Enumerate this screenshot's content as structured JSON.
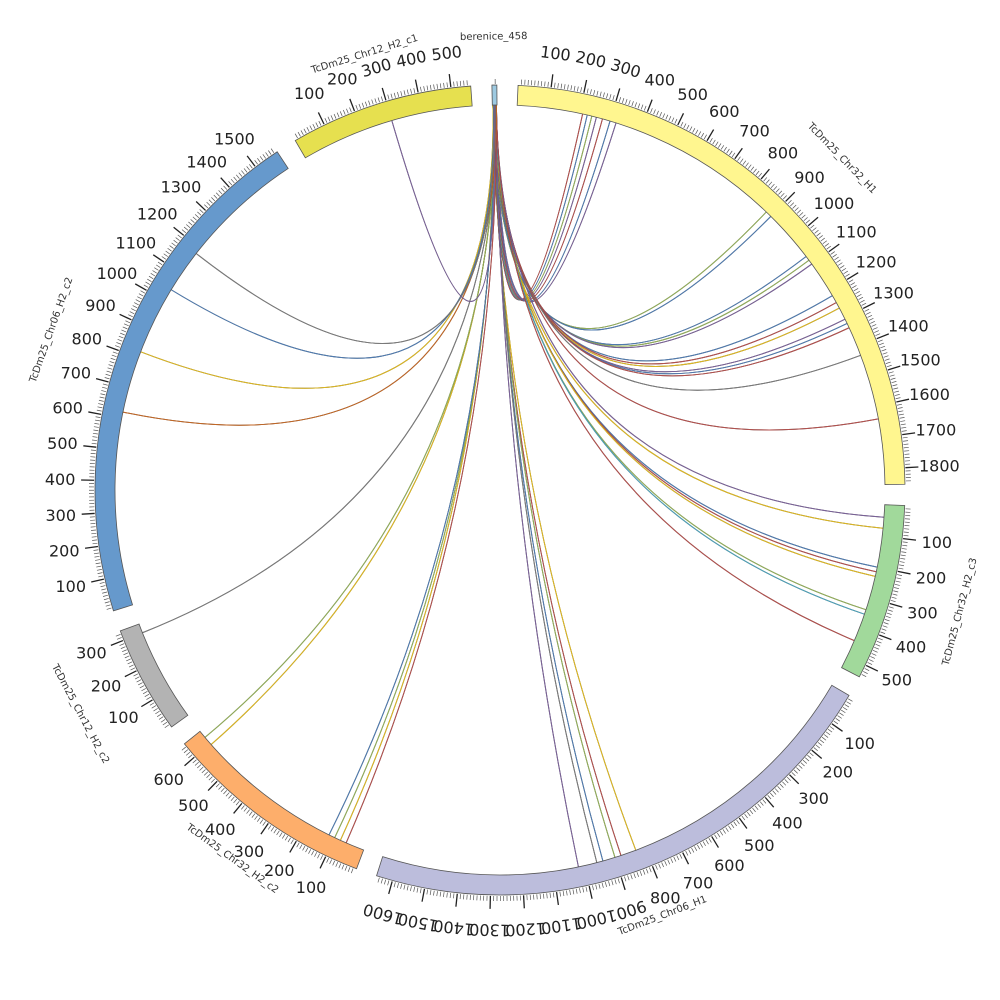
{
  "diagram": {
    "type": "circos",
    "tick_step": 100,
    "minor_tick_step": 10,
    "segments": [
      {
        "name": "berenice_458",
        "length": 15,
        "color": "#9ecae1"
      },
      {
        "name": "TcDm25_Chr32_H1",
        "length": 1850,
        "color": "#fff68f"
      },
      {
        "name": "TcDm25_Chr32_H2_c3",
        "length": 540,
        "color": "#a1d99b"
      },
      {
        "name": "TcDm25_Chr06_H1",
        "length": 1650,
        "color": "#bcbddc"
      },
      {
        "name": "TcDm25_Chr32_H2_c2",
        "length": 650,
        "color": "#fdae6b"
      },
      {
        "name": "TcDm25_Chr12_H2_c2",
        "length": 330,
        "color": "#b3b3b3"
      },
      {
        "name": "TcDm25_Chr06_H2_c2",
        "length": 1580,
        "color": "#6699cc"
      },
      {
        "name": "TcDm25_Chr12_H2_c1",
        "length": 560,
        "color": "#e6e04f"
      }
    ],
    "link_colors": [
      "#c0504d",
      "#4f81bd",
      "#9bbb59",
      "#8064a2",
      "#f0c419",
      "#4bacc6",
      "#7f7f7f",
      "#d2691e"
    ],
    "links": [
      {
        "to": "TcDm25_Chr32_H1",
        "pos": 210,
        "color_index": 0
      },
      {
        "to": "TcDm25_Chr32_H1",
        "pos": 225,
        "color_index": 1
      },
      {
        "to": "TcDm25_Chr32_H1",
        "pos": 240,
        "color_index": 2
      },
      {
        "to": "TcDm25_Chr32_H1",
        "pos": 255,
        "color_index": 3
      },
      {
        "to": "TcDm25_Chr32_H1",
        "pos": 275,
        "color_index": 0
      },
      {
        "to": "TcDm25_Chr32_H1",
        "pos": 300,
        "color_index": 1
      },
      {
        "to": "TcDm25_Chr32_H1",
        "pos": 320,
        "color_index": 3
      },
      {
        "to": "TcDm25_Chr32_H1",
        "pos": 880,
        "color_index": 2
      },
      {
        "to": "TcDm25_Chr32_H1",
        "pos": 900,
        "color_index": 1
      },
      {
        "to": "TcDm25_Chr32_H1",
        "pos": 1070,
        "color_index": 1
      },
      {
        "to": "TcDm25_Chr32_H1",
        "pos": 1085,
        "color_index": 2
      },
      {
        "to": "TcDm25_Chr32_H1",
        "pos": 1100,
        "color_index": 3
      },
      {
        "to": "TcDm25_Chr32_H1",
        "pos": 1220,
        "color_index": 1
      },
      {
        "to": "TcDm25_Chr32_H1",
        "pos": 1245,
        "color_index": 0
      },
      {
        "to": "TcDm25_Chr32_H1",
        "pos": 1265,
        "color_index": 4
      },
      {
        "to": "TcDm25_Chr32_H1",
        "pos": 1305,
        "color_index": 3
      },
      {
        "to": "TcDm25_Chr32_H1",
        "pos": 1320,
        "color_index": 1
      },
      {
        "to": "TcDm25_Chr32_H1",
        "pos": 1335,
        "color_index": 0
      },
      {
        "to": "TcDm25_Chr32_H1",
        "pos": 1430,
        "color_index": 6
      },
      {
        "to": "TcDm25_Chr32_H1",
        "pos": 1640,
        "color_index": 0
      },
      {
        "to": "TcDm25_Chr32_H2_c3",
        "pos": 40,
        "color_index": 3
      },
      {
        "to": "TcDm25_Chr32_H2_c3",
        "pos": 75,
        "color_index": 4
      },
      {
        "to": "TcDm25_Chr32_H2_c3",
        "pos": 200,
        "color_index": 1
      },
      {
        "to": "TcDm25_Chr32_H2_c3",
        "pos": 215,
        "color_index": 0
      },
      {
        "to": "TcDm25_Chr32_H2_c3",
        "pos": 230,
        "color_index": 4
      },
      {
        "to": "TcDm25_Chr32_H2_c3",
        "pos": 340,
        "color_index": 2
      },
      {
        "to": "TcDm25_Chr32_H2_c3",
        "pos": 355,
        "color_index": 5
      },
      {
        "to": "TcDm25_Chr32_H2_c3",
        "pos": 445,
        "color_index": 0
      },
      {
        "to": "TcDm25_Chr06_H1",
        "pos": 830,
        "color_index": 4
      },
      {
        "to": "TcDm25_Chr06_H1",
        "pos": 880,
        "color_index": 0
      },
      {
        "to": "TcDm25_Chr06_H1",
        "pos": 900,
        "color_index": 2
      },
      {
        "to": "TcDm25_Chr06_H1",
        "pos": 940,
        "color_index": 1
      },
      {
        "to": "TcDm25_Chr06_H1",
        "pos": 960,
        "color_index": 6
      },
      {
        "to": "TcDm25_Chr06_H1",
        "pos": 1020,
        "color_index": 3
      },
      {
        "to": "TcDm25_Chr32_H2_c2",
        "pos": 60,
        "color_index": 0
      },
      {
        "to": "TcDm25_Chr32_H2_c2",
        "pos": 80,
        "color_index": 4
      },
      {
        "to": "TcDm25_Chr32_H2_c2",
        "pos": 100,
        "color_index": 2
      },
      {
        "to": "TcDm25_Chr32_H2_c2",
        "pos": 120,
        "color_index": 1
      },
      {
        "to": "TcDm25_Chr32_H2_c2",
        "pos": 595,
        "color_index": 4
      },
      {
        "to": "TcDm25_Chr32_H2_c2",
        "pos": 625,
        "color_index": 2
      },
      {
        "to": "TcDm25_Chr12_H2_c2",
        "pos": 300,
        "color_index": 6
      },
      {
        "to": "TcDm25_Chr06_H2_c2",
        "pos": 620,
        "color_index": 7
      },
      {
        "to": "TcDm25_Chr06_H2_c2",
        "pos": 820,
        "color_index": 4
      },
      {
        "to": "TcDm25_Chr06_H2_c2",
        "pos": 1040,
        "color_index": 1
      },
      {
        "to": "TcDm25_Chr06_H2_c2",
        "pos": 1180,
        "color_index": 6
      },
      {
        "to": "TcDm25_Chr12_H2_c1",
        "pos": 300,
        "color_index": 3
      }
    ]
  }
}
